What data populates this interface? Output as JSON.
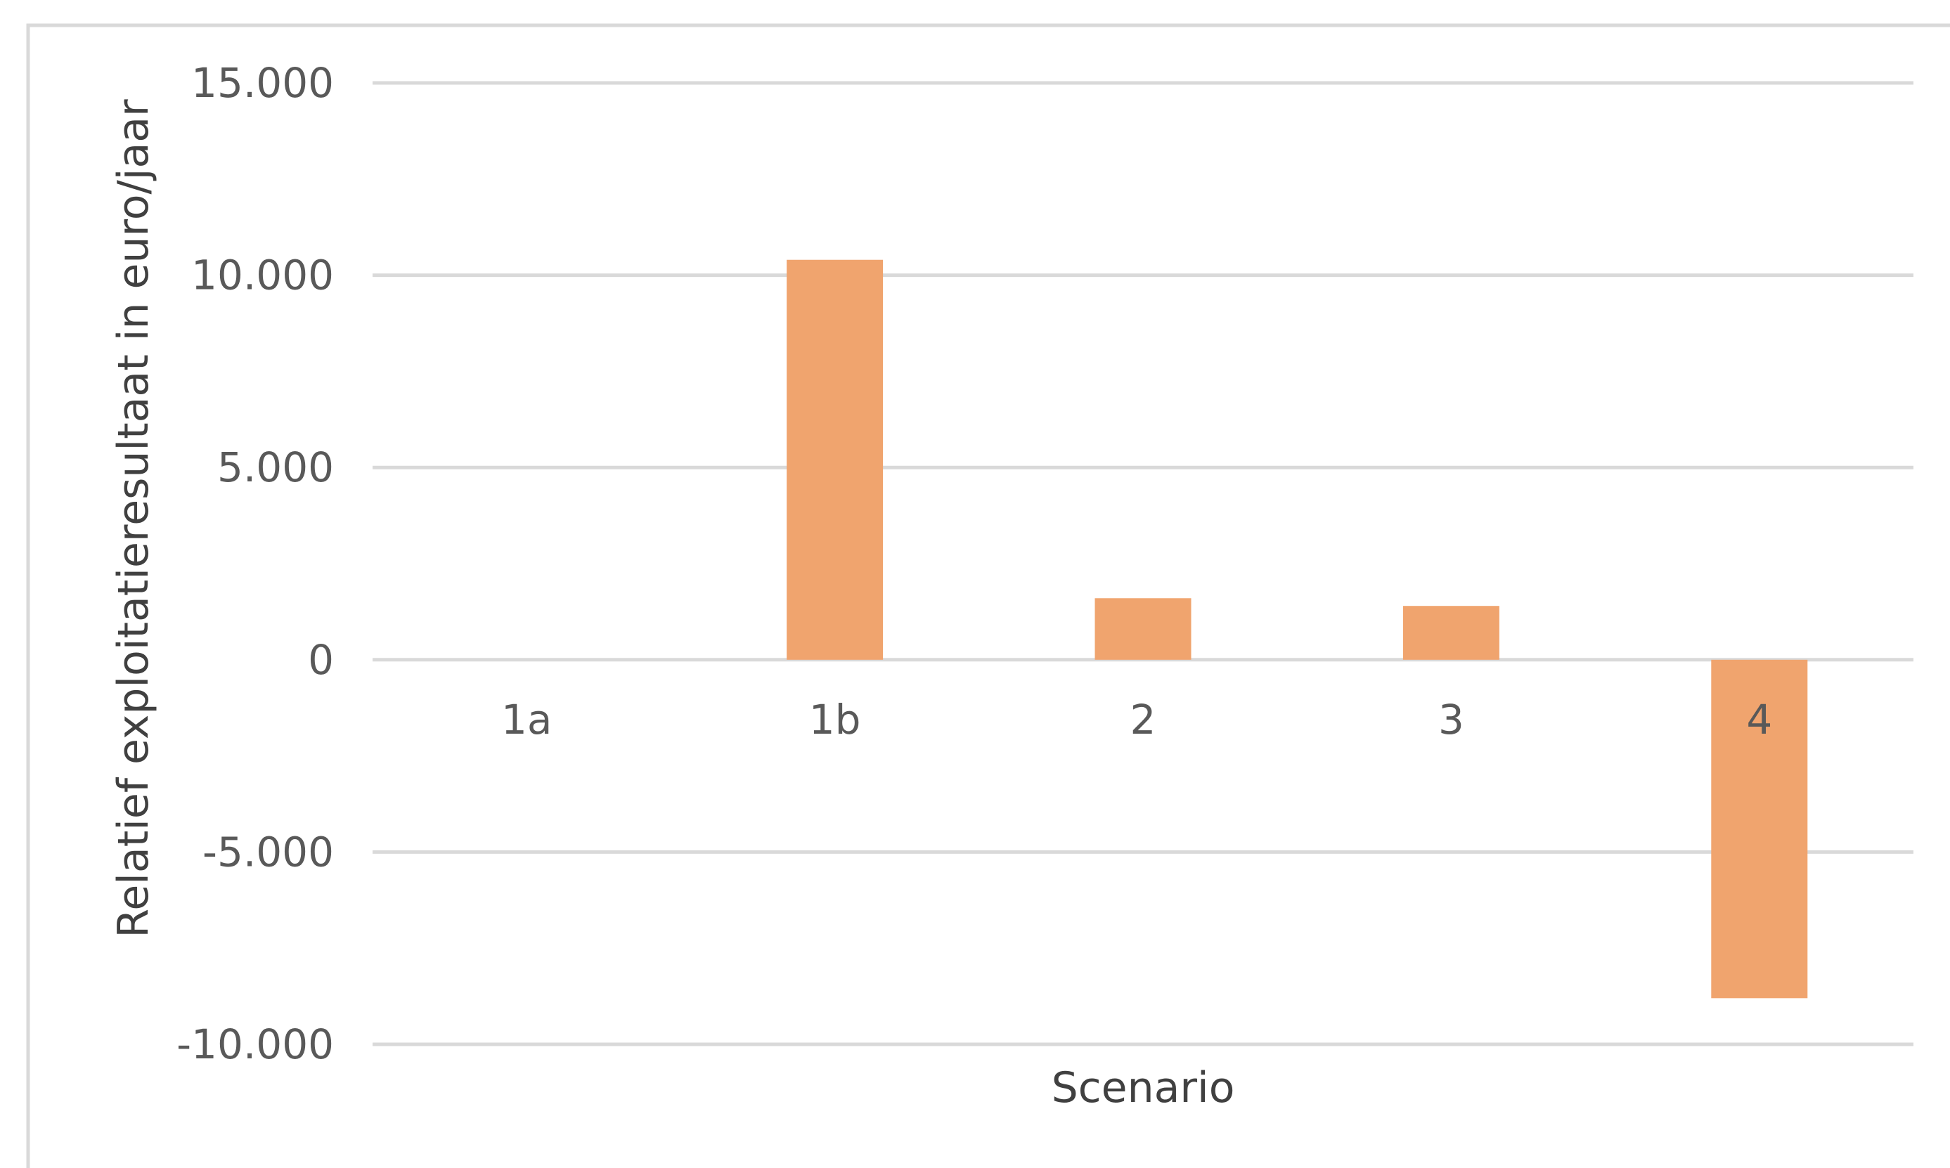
{
  "chart_data": {
    "type": "bar",
    "categories": [
      "1a",
      "1b",
      "2",
      "3",
      "4"
    ],
    "series": [
      {
        "values": [
          0,
          10400,
          1600,
          1400,
          -8800
        ],
        "color": "#F0A46E"
      }
    ],
    "xlabel": "Scenario",
    "ylabel": "Relatief exploitatieresultaat in euro/jaar",
    "ylim": [
      -10000,
      15000
    ],
    "yticks": [
      15000,
      10000,
      5000,
      0,
      -5000,
      -10000
    ],
    "ytick_labels": [
      "15.000",
      "10.000",
      "5.000",
      "0",
      "-5.000",
      "-10.000"
    ],
    "grid": true,
    "legend": "none",
    "gridline_color": "#D9D9D9",
    "border_color": "#D9D9D9"
  }
}
